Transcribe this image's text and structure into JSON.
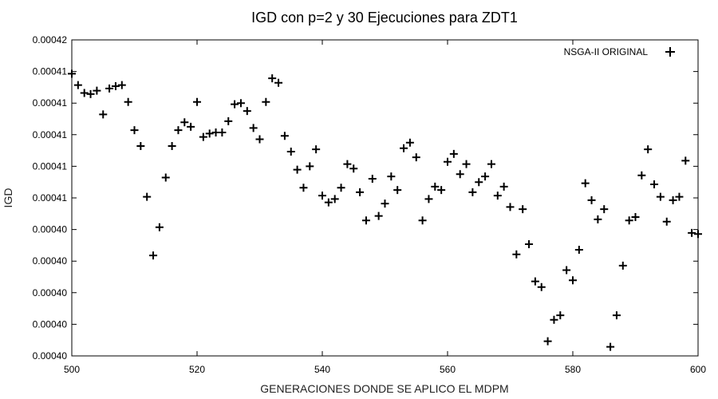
{
  "chart_data": {
    "type": "scatter",
    "title": "IGD con p=2 y 30 Ejecuciones para ZDT1",
    "xlabel": "GENERACIONES DONDE SE APLICO EL MDPM",
    "ylabel": "IGD",
    "xlim": [
      500,
      600
    ],
    "x_ticks": [
      "500",
      "520",
      "540",
      "560",
      "580",
      "600"
    ],
    "y_ticks": [
      "0.00040",
      "0.00040",
      "0.00040",
      "0.00040",
      "0.00040",
      "0.00041",
      "0.00041",
      "0.00041",
      "0.00041",
      "0.00041",
      "0.00042"
    ],
    "legend_position": "top-right",
    "grid": false,
    "series": [
      {
        "name": "NSGA-II ORIGINAL",
        "marker": "+",
        "x": [
          500,
          501,
          502,
          503,
          504,
          505,
          506,
          507,
          508,
          509,
          510,
          511,
          512,
          513,
          514,
          515,
          516,
          517,
          518,
          519,
          520,
          521,
          522,
          523,
          524,
          525,
          526,
          527,
          528,
          529,
          530,
          531,
          532,
          533,
          534,
          535,
          536,
          537,
          538,
          539,
          540,
          541,
          542,
          543,
          544,
          545,
          546,
          547,
          548,
          549,
          550,
          551,
          552,
          553,
          554,
          555,
          556,
          557,
          558,
          559,
          560,
          561,
          562,
          563,
          564,
          565,
          566,
          567,
          568,
          569,
          570,
          571,
          572,
          573,
          574,
          575,
          576,
          577,
          578,
          579,
          580,
          581,
          582,
          583,
          584,
          585,
          586,
          587,
          588,
          589,
          590,
          591,
          592,
          593,
          594,
          595,
          596,
          597,
          598,
          599,
          600
        ],
        "y": [
          0.000413,
          0.000412,
          0.0004113,
          0.0004112,
          0.0004115,
          0.0004094,
          0.0004117,
          0.0004119,
          0.000412,
          0.0004105,
          0.000408,
          0.0004066,
          0.0004021,
          0.0003969,
          0.0003994,
          0.0004038,
          0.0004066,
          0.000408,
          0.0004087,
          0.0004083,
          0.0004105,
          0.0004074,
          0.0004077,
          0.0004078,
          0.0004078,
          0.0004088,
          0.0004103,
          0.0004104,
          0.0004097,
          0.0004082,
          0.0004072,
          0.0004105,
          0.0004126,
          0.0004122,
          0.0004075,
          0.0004061,
          0.0004045,
          0.0004029,
          0.0004048,
          0.0004063,
          0.0004022,
          0.0004016,
          0.0004019,
          0.0004029,
          0.000405,
          0.0004046,
          0.0004025,
          0.0004,
          0.0004037,
          0.0004004,
          0.0004015,
          0.0004039,
          0.0004027,
          0.0004064,
          0.0004069,
          0.0004056,
          0.0004,
          0.0004019,
          0.000403,
          0.0004027,
          0.0004052,
          0.0004059,
          0.0004041,
          0.000405,
          0.0004025,
          0.0004034,
          0.0004039,
          0.000405,
          0.0004022,
          0.000403,
          0.0004012,
          0.000397,
          0.000401,
          0.0003979,
          0.0003946,
          0.0003941,
          0.0003893,
          0.0003912,
          0.0003916,
          0.0003956,
          0.0003947,
          0.0003974,
          0.0004033,
          0.0004018,
          0.0004001,
          0.000401,
          0.0003888,
          0.0003916,
          0.000396,
          0.0004,
          0.0004003,
          0.000404,
          0.0004063,
          0.0004032,
          0.0004021,
          0.0003999,
          0.0004018,
          0.0004021,
          0.0004053,
          0.0003989,
          0.0003988
        ]
      }
    ]
  }
}
